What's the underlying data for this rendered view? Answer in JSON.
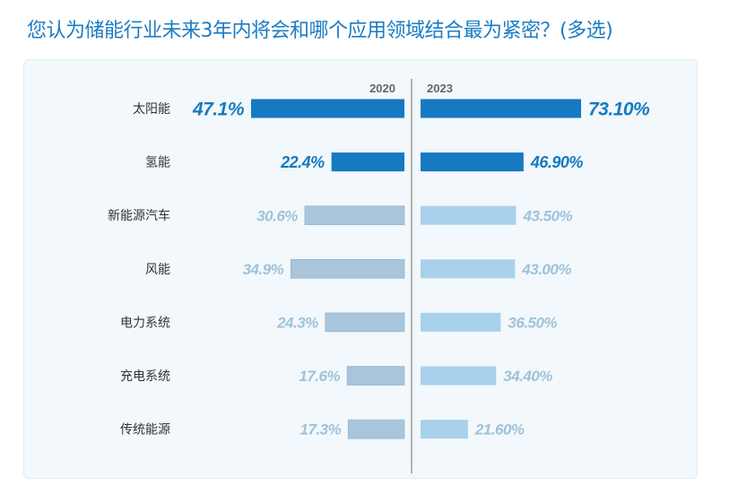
{
  "title": "您认为储能行业未来3年内将会和哪个应用领域结合最为紧密？(多选)",
  "chart_data": {
    "type": "bar",
    "title": "您认为储能行业未来3年内将会和哪个应用领域结合最为紧密？(多选)",
    "categories": [
      "太阳能",
      "氢能",
      "新能源汽车",
      "风能",
      "电力系统",
      "充电系统",
      "传统能源"
    ],
    "series": [
      {
        "name": "2020",
        "values": [
          47.1,
          22.4,
          30.6,
          34.9,
          24.3,
          17.6,
          17.3
        ],
        "labels": [
          "47.1%",
          "22.4%",
          "30.6%",
          "34.9%",
          "24.3%",
          "17.6%",
          "17.3%"
        ]
      },
      {
        "name": "2023",
        "values": [
          73.1,
          46.9,
          43.5,
          43.0,
          36.5,
          34.4,
          21.6
        ],
        "labels": [
          "73.10%",
          "46.90%",
          "43.50%",
          "43.00%",
          "36.50%",
          "34.40%",
          "21.60%"
        ]
      }
    ],
    "highlight_count": 2,
    "colors": {
      "highlight": "#1679c2",
      "left_muted": "#a9c5dc",
      "right_muted": "#a9d1ec",
      "label_muted": "#9fc2da",
      "divider": "#999999"
    },
    "legend": "top-center"
  }
}
